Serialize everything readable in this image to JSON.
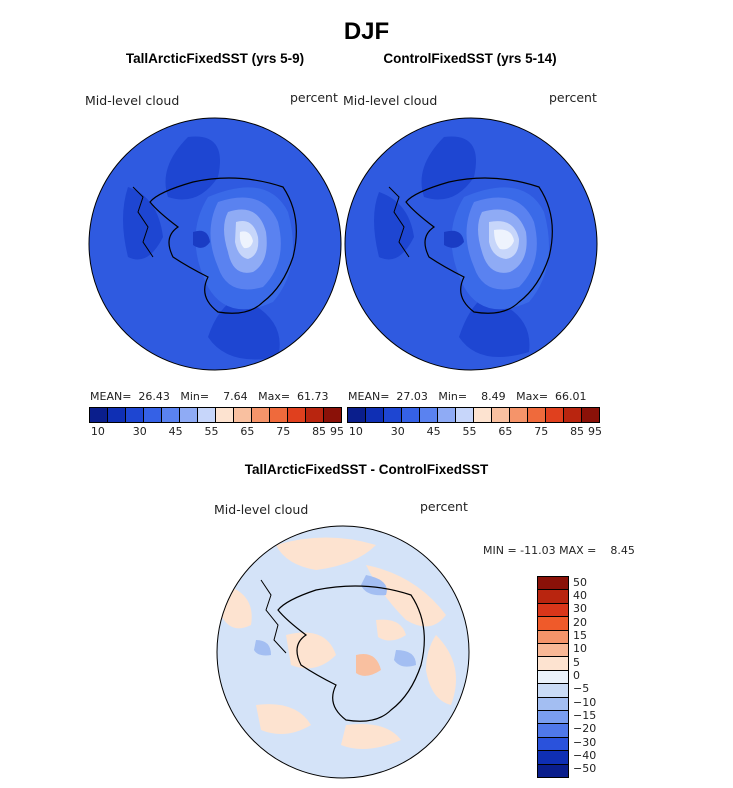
{
  "main_title": "DJF",
  "panels": [
    {
      "title": "TallArcticFixedSST (yrs 5-9)",
      "variable": "Mid-level cloud",
      "units": "percent",
      "stats": "MEAN=  26.43   Min=    7.64   Max=  61.73"
    },
    {
      "title": "ControlFixedSST (yrs 5-14)",
      "variable": "Mid-level cloud",
      "units": "percent",
      "stats": "MEAN=  27.03   Min=    8.49   Max=  66.01"
    }
  ],
  "colorbar_top": {
    "colors": [
      "#0a1e8c",
      "#0f2fb4",
      "#1e46d2",
      "#3561e6",
      "#5a82f0",
      "#8fabf5",
      "#c7d6fa",
      "#fde3d0",
      "#f9c0a0",
      "#f5946a",
      "#ef6a3c",
      "#e0401e",
      "#b9250f",
      "#8a1108"
    ],
    "tick_labels": [
      "10",
      "30",
      "45",
      "55",
      "65",
      "75",
      "85",
      "95"
    ]
  },
  "diff_panel": {
    "title": "TallArcticFixedSST - ControlFixedSST",
    "variable": "Mid-level cloud",
    "units": "percent",
    "minmax": "MIN = -11.03 MAX =    8.45"
  },
  "colorbar_diff": {
    "colors": [
      "#8a1108",
      "#b9250f",
      "#d9361a",
      "#ef5a2a",
      "#f5946a",
      "#f9b896",
      "#fde3d0",
      "#eaf2fb",
      "#c9dbf6",
      "#a3bef2",
      "#7a9ef0",
      "#4f78ea",
      "#2a52dc",
      "#0f2fb4",
      "#0a1e8c"
    ],
    "labels": [
      "50",
      "40",
      "30",
      "20",
      "15",
      "10",
      "5",
      "0",
      "−5",
      "−10",
      "−15",
      "−20",
      "−30",
      "−40",
      "−50"
    ]
  }
}
